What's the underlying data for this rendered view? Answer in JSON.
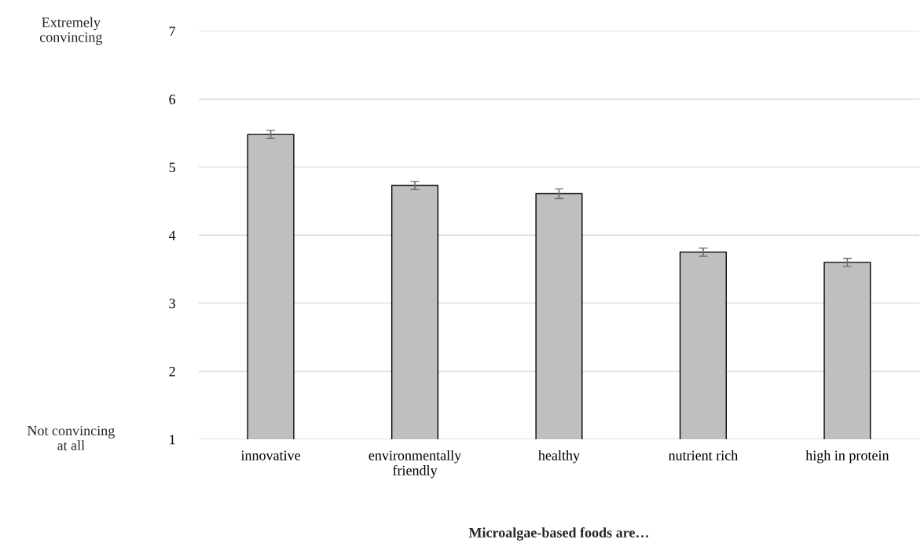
{
  "chart_data": {
    "type": "bar",
    "categories": [
      "innovative",
      "environmentally\nfriendly",
      "healthy",
      "nutrient rich",
      "high in protein"
    ],
    "values": [
      5.48,
      4.73,
      4.61,
      3.75,
      3.6
    ],
    "errors": [
      0.06,
      0.06,
      0.07,
      0.06,
      0.06
    ],
    "color": "#bfbfbf",
    "xlabel": "Microalgae-based foods are…",
    "ylim": [
      1,
      7
    ],
    "yticks": [
      1,
      2,
      3,
      4,
      5,
      6,
      7
    ],
    "grid": "y",
    "annotations": [
      "Extremely\nconvincing",
      "Not convincing\nat all"
    ]
  }
}
